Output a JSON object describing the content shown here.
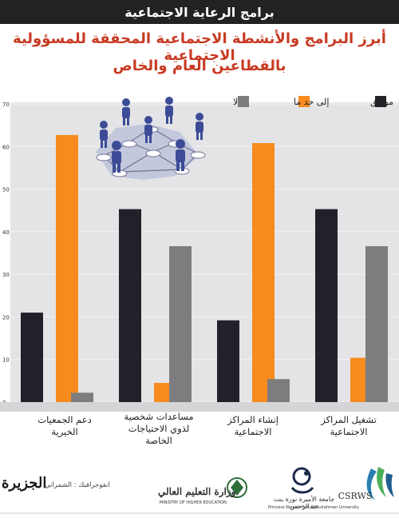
{
  "header": {
    "section_title": "برامج الرعاية الاجتماعية"
  },
  "title": {
    "line1": "أبرز البرامج والأنشطة الاجتماعية المحققة للمسؤولية الاجتماعية",
    "line2": "بالقطاعين العام والخاص"
  },
  "legend": {
    "agree": "موافق",
    "somewhat": "إلى حد ما",
    "no": "لا"
  },
  "colors": {
    "agree": "#222129",
    "somewhat": "#f78b1e",
    "no": "#7d7d80",
    "title": "#c83a22",
    "header_bg": "#222222",
    "plot_bg": "#e4e4e6",
    "category_band": "#d5d5d8"
  },
  "illustration": {
    "icon": "people-network-icon"
  },
  "chart_data": {
    "type": "bar",
    "categories": [
      "دعم الجمعيات الخيرية",
      "مساعدات شخصية لذوي الاحتياجات الخاصة",
      "إنشاء المراكز الاجتماعية",
      "تشغيل المراكز الاجتماعية"
    ],
    "series": [
      {
        "name": "موافق",
        "values": [
          21,
          45.3,
          19.2,
          45.3
        ]
      },
      {
        "name": "إلى حد ما",
        "values": [
          62.7,
          4.5,
          60.8,
          10.4
        ]
      },
      {
        "name": "لا",
        "values": [
          2.2,
          36.6,
          5.4,
          36.6
        ]
      }
    ],
    "ylim": [
      0,
      70
    ],
    "yticks": [
      "0",
      "10",
      "20",
      "30",
      "40",
      "50",
      "60",
      "70"
    ],
    "grid": true,
    "legend_position": "top-right"
  },
  "categories_display": {
    "c0": {
      "l1": "دعم الجمعيات",
      "l2": "الخيرية"
    },
    "c1": {
      "l1": "مساعدات شخصية",
      "l2": "لذوي الاحتياجات",
      "l3": "الخاصة"
    },
    "c2": {
      "l1": "إنشاء المراكز",
      "l2": "الاجتماعية"
    },
    "c3": {
      "l1": "تشغيل المراكز",
      "l2": "الاجتماعية"
    }
  },
  "footer": {
    "credit": "انفوجرافيك : الشمراني",
    "brand": "الجزيرة",
    "mohe_ar": "وزارة التعليم العالي",
    "mohe_en": "MINISTRY OF HIGHER EDUCATION",
    "pnu_ar": "جامعة الأميرة نورة بنت عبدالرحمن",
    "pnu_en": "Princess Nourah Bint Abdulrahman University",
    "csrws": "CSRWS"
  }
}
